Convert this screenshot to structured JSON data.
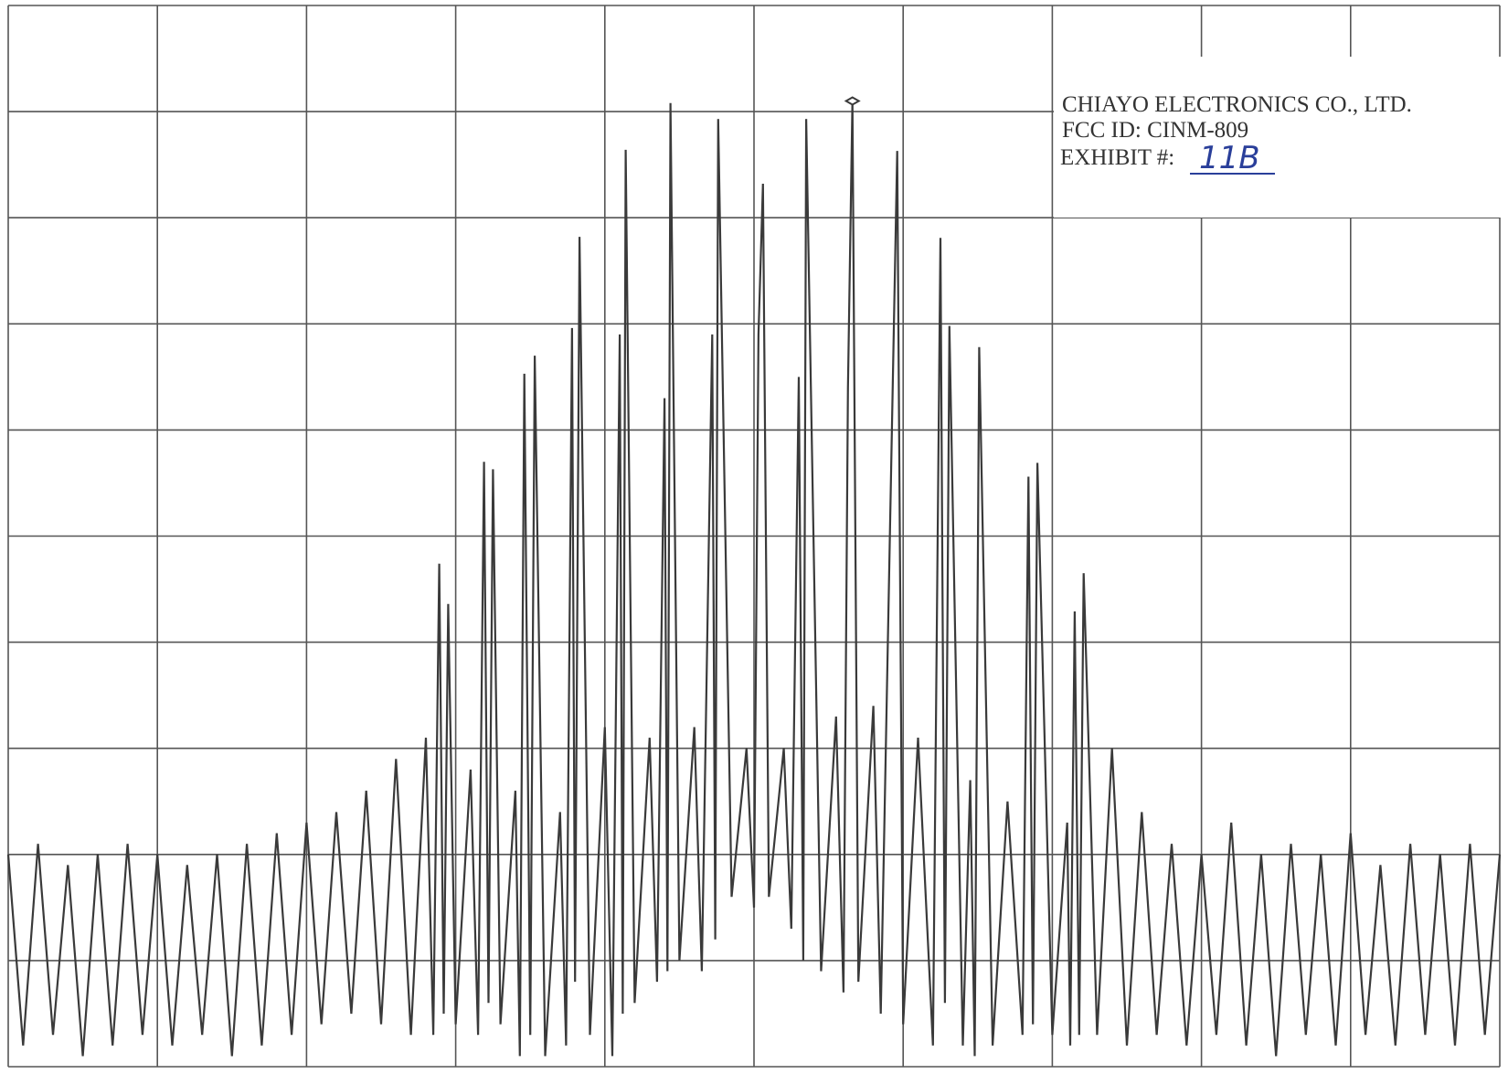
{
  "chart_data": {
    "type": "line",
    "annotations": [
      "CHIAYO ELECTRONICS CO., LTD.",
      "FCC ID: CINM-809",
      "EXHIBIT #:",
      "11B"
    ],
    "color": "#3a3a3a",
    "grid": true,
    "xlim": [
      0,
      10
    ],
    "ylim": [
      0,
      10
    ],
    "xticks": [
      0,
      1,
      2,
      3,
      4,
      5,
      6,
      7,
      8,
      9,
      10
    ],
    "yticks": [
      0,
      1,
      2,
      3,
      4,
      5,
      6,
      7,
      8,
      9,
      10
    ],
    "marker": {
      "x": 5.66,
      "value": 9.1
    },
    "x": [
      0,
      0.1,
      0.2,
      0.3,
      0.4,
      0.5,
      0.6,
      0.7,
      0.8,
      0.9,
      1.0,
      1.1,
      1.2,
      1.3,
      1.4,
      1.5,
      1.6,
      1.7,
      1.8,
      1.9,
      2.0,
      2.1,
      2.2,
      2.3,
      2.4,
      2.5,
      2.6,
      2.7,
      2.8,
      2.85,
      2.89,
      2.92,
      2.95,
      3.0,
      3.1,
      3.15,
      3.19,
      3.22,
      3.25,
      3.3,
      3.4,
      3.43,
      3.46,
      3.5,
      3.53,
      3.6,
      3.7,
      3.74,
      3.78,
      3.8,
      3.83,
      3.9,
      4.0,
      4.05,
      4.1,
      4.12,
      4.14,
      4.2,
      4.3,
      4.35,
      4.4,
      4.42,
      4.44,
      4.5,
      4.6,
      4.65,
      4.72,
      4.74,
      4.76,
      4.85,
      4.95,
      5.0,
      5.03,
      5.06,
      5.1,
      5.2,
      5.25,
      5.3,
      5.33,
      5.35,
      5.45,
      5.55,
      5.6,
      5.63,
      5.66,
      5.7,
      5.8,
      5.85,
      5.96,
      6.0,
      6.1,
      6.2,
      6.25,
      6.28,
      6.31,
      6.4,
      6.45,
      6.48,
      6.51,
      6.6,
      6.7,
      6.8,
      6.84,
      6.87,
      6.9,
      7.0,
      7.1,
      7.12,
      7.15,
      7.18,
      7.21,
      7.3,
      7.4,
      7.5,
      7.6,
      7.7,
      7.8,
      7.9,
      8.0,
      8.1,
      8.2,
      8.3,
      8.4,
      8.5,
      8.6,
      8.7,
      8.8,
      8.9,
      9.0,
      9.1,
      9.2,
      9.3,
      9.4,
      9.5,
      9.6,
      9.7,
      9.8,
      9.9,
      10.0
    ],
    "values": [
      2.0,
      0.2,
      2.1,
      0.3,
      1.9,
      0.1,
      2.0,
      0.2,
      2.1,
      0.3,
      2.0,
      0.2,
      1.9,
      0.3,
      2.0,
      0.1,
      2.1,
      0.2,
      2.2,
      0.3,
      2.3,
      0.4,
      2.4,
      0.5,
      2.6,
      0.4,
      2.9,
      0.3,
      3.1,
      0.3,
      4.74,
      0.5,
      4.36,
      0.4,
      2.8,
      0.3,
      5.7,
      0.6,
      5.63,
      0.4,
      2.6,
      0.1,
      6.53,
      0.3,
      6.7,
      0.1,
      2.4,
      0.2,
      6.96,
      0.8,
      7.82,
      0.3,
      3.2,
      0.1,
      6.9,
      0.5,
      8.64,
      0.6,
      3.1,
      0.8,
      6.3,
      0.9,
      9.08,
      1.0,
      3.2,
      0.9,
      6.9,
      1.2,
      8.93,
      1.6,
      3.0,
      1.5,
      6.9,
      8.32,
      1.6,
      3.0,
      1.3,
      6.5,
      1.0,
      8.93,
      0.9,
      3.3,
      0.7,
      6.4,
      9.1,
      0.8,
      3.4,
      0.5,
      8.63,
      0.4,
      3.1,
      0.2,
      7.81,
      0.6,
      6.98,
      0.2,
      2.7,
      0.1,
      6.78,
      0.2,
      2.5,
      0.3,
      5.56,
      0.4,
      5.69,
      0.3,
      2.3,
      0.2,
      4.29,
      0.3,
      4.65,
      0.3,
      3.0,
      0.2,
      2.4,
      0.3,
      2.1,
      0.2,
      2.0,
      0.3,
      2.3,
      0.2,
      2.0,
      0.1,
      2.1,
      0.3,
      2.0,
      0.2,
      2.2,
      0.3,
      1.9,
      0.2,
      2.1,
      0.3,
      2.0,
      0.2,
      2.1,
      0.3,
      2.0
    ]
  }
}
